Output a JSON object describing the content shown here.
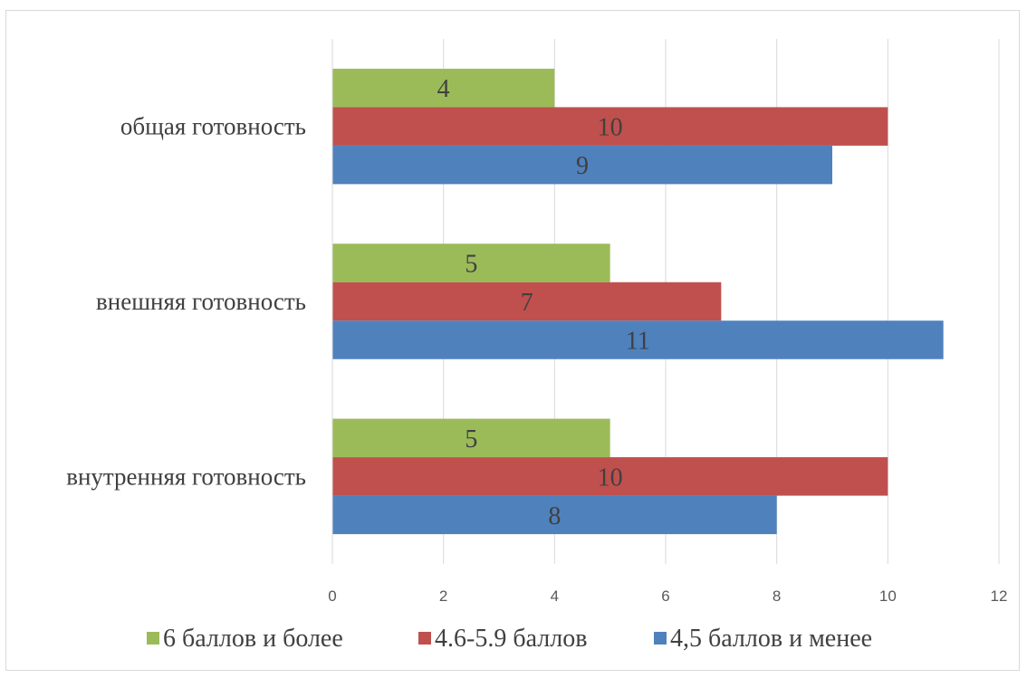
{
  "chart_data": {
    "type": "bar",
    "orientation": "horizontal",
    "categories": [
      "общая готовность",
      "внешняя готовность",
      "внутренняя готовность"
    ],
    "series": [
      {
        "name": "6 баллов и более",
        "color": "#9bbb59",
        "values": [
          4,
          5,
          5
        ]
      },
      {
        "name": "4.6-5.9 баллов",
        "color": "#c0504d",
        "values": [
          10,
          7,
          10
        ]
      },
      {
        "name": "4,5 баллов и менее",
        "color": "#4f81bd",
        "values": [
          9,
          11,
          8
        ]
      }
    ],
    "xlim": [
      0,
      12
    ],
    "x_ticks": [
      "0",
      "2",
      "4",
      "6",
      "8",
      "10",
      "12"
    ],
    "grid": true,
    "legend_position": "bottom",
    "title": "",
    "xlabel": "",
    "ylabel": ""
  }
}
